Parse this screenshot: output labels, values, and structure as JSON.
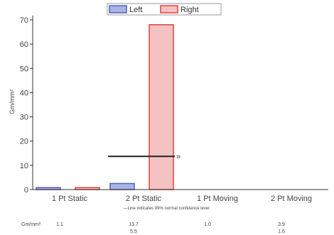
{
  "chart_data": {
    "type": "bar",
    "categories": [
      "1 Pt Static",
      "2 Pt Static",
      "1 Pt Moving",
      "2 Pt Moving"
    ],
    "series": [
      {
        "name": "Left",
        "values": [
          0.8,
          2.5,
          0,
          0
        ],
        "color": "#aab4e0",
        "stroke": "#5060c0"
      },
      {
        "name": "Right",
        "values": [
          0.8,
          68,
          0,
          0
        ],
        "color": "#f4c2c2",
        "stroke": "#e04040"
      }
    ],
    "ylabel": "Gm/mm²",
    "ylim": [
      0,
      70
    ],
    "yticks": [
      0,
      10,
      20,
      30,
      40,
      50,
      60,
      70
    ],
    "legend_position": "top",
    "grid": false,
    "reference_line": {
      "category_index": 1,
      "value": 13.7,
      "marker": "»"
    },
    "footnote": "—Line indicates 99% normal confidence level",
    "table": {
      "row_label": "Gm/mm²",
      "values": [
        "1.1",
        "13.7",
        "1.0",
        "3.9"
      ],
      "second_row": [
        "",
        "5.5",
        "",
        "1.6"
      ]
    }
  }
}
